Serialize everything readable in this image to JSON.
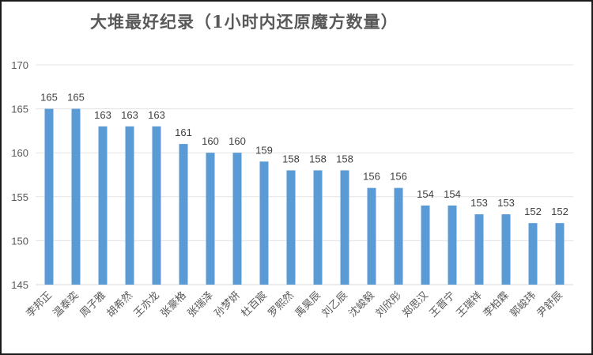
{
  "chart_data": {
    "type": "bar",
    "title": "大堆最好纪录（1小时内还原魔方数量）",
    "xlabel": "",
    "ylabel": "",
    "ylim": [
      145,
      170
    ],
    "yticks": [
      145,
      150,
      155,
      160,
      165,
      170
    ],
    "grid": true,
    "legend": null,
    "bar_color": "#5B9BD5",
    "categories": [
      "李邦正",
      "温泰奕",
      "周子雅",
      "胡希然",
      "王亦龙",
      "张豪格",
      "张瑞泽",
      "孙梦妍",
      "杜百宸",
      "罗熙然",
      "禹昊辰",
      "刘乙辰",
      "沈峻毅",
      "刘欣彤",
      "郑思汉",
      "王晋宁",
      "王瑞祥",
      "李柏霖",
      "郭峻玮",
      "尹舒辰"
    ],
    "values": [
      165,
      165,
      163,
      163,
      163,
      161,
      160,
      160,
      159,
      158,
      158,
      158,
      156,
      156,
      154,
      154,
      153,
      153,
      152,
      152
    ]
  }
}
